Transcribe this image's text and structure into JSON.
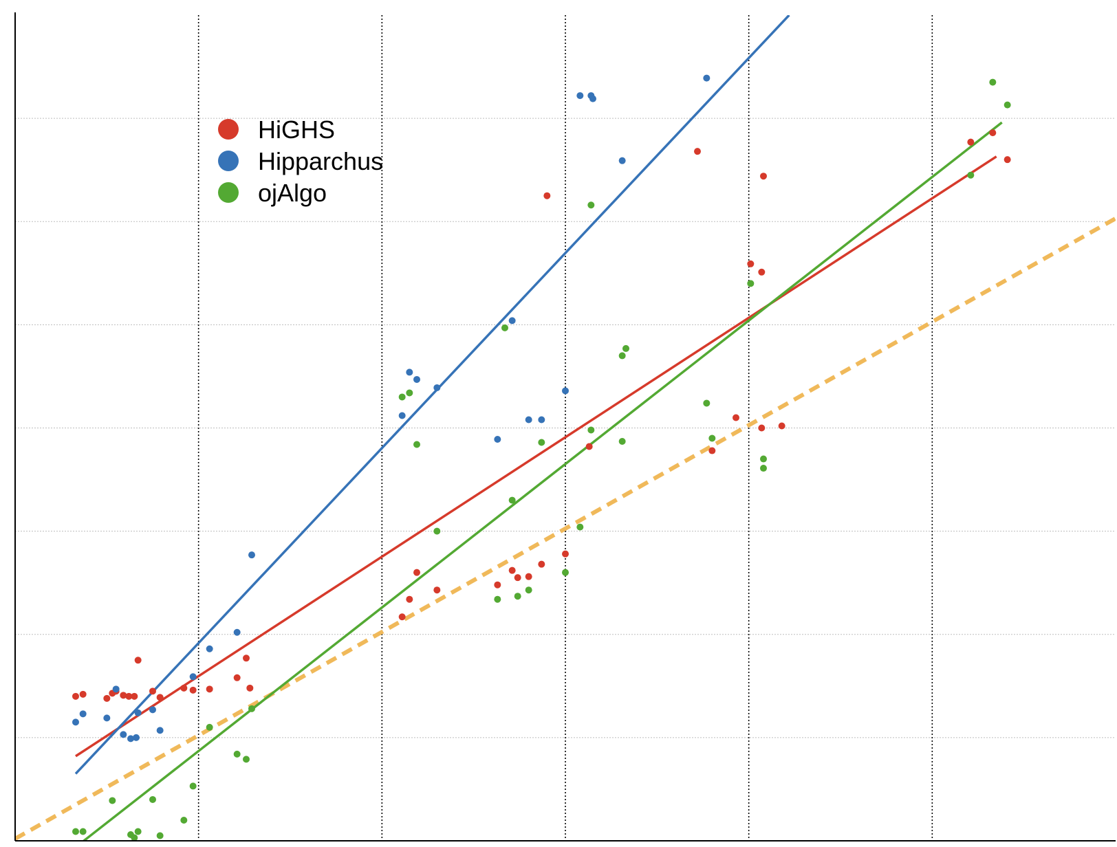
{
  "chart_data": {
    "type": "scatter",
    "title": "",
    "xlabel": "",
    "ylabel": "",
    "xlim": [
      0,
      6
    ],
    "ylim": [
      0,
      8
    ],
    "x_gridlines": [
      1,
      2,
      3,
      4,
      5
    ],
    "y_gridlines": [
      1,
      2,
      3,
      4,
      5,
      6,
      7
    ],
    "grid": true,
    "legend": {
      "placement": "top-left"
    },
    "reference_line": {
      "name": "",
      "color": "#f0b95a",
      "style": "dashed",
      "points": [
        [
          0,
          0.02
        ],
        [
          6,
          6.03
        ]
      ]
    },
    "series": [
      {
        "name": "HiGHS",
        "color": "#d63a2b",
        "trend": [
          [
            0.33,
            0.82
          ],
          [
            5.35,
            6.63
          ]
        ],
        "points": [
          [
            0.33,
            1.4
          ],
          [
            0.37,
            1.42
          ],
          [
            0.5,
            1.38
          ],
          [
            0.53,
            1.43
          ],
          [
            0.55,
            1.45
          ],
          [
            0.59,
            1.41
          ],
          [
            0.62,
            1.4
          ],
          [
            0.65,
            1.4
          ],
          [
            0.67,
            1.75
          ],
          [
            0.75,
            1.45
          ],
          [
            0.79,
            1.39
          ],
          [
            0.92,
            1.48
          ],
          [
            0.97,
            1.46
          ],
          [
            1.06,
            1.47
          ],
          [
            1.21,
            1.58
          ],
          [
            1.26,
            1.77
          ],
          [
            1.28,
            1.48
          ],
          [
            2.11,
            2.17
          ],
          [
            2.15,
            2.34
          ],
          [
            2.19,
            2.6
          ],
          [
            2.3,
            2.43
          ],
          [
            2.63,
            2.48
          ],
          [
            2.71,
            2.62
          ],
          [
            2.74,
            2.55
          ],
          [
            2.8,
            2.56
          ],
          [
            2.87,
            2.68
          ],
          [
            2.9,
            6.25
          ],
          [
            3.0,
            2.78
          ],
          [
            3.13,
            3.82
          ],
          [
            3.72,
            6.68
          ],
          [
            3.8,
            3.78
          ],
          [
            3.93,
            4.1
          ],
          [
            4.01,
            5.59
          ],
          [
            4.07,
            4.0
          ],
          [
            4.07,
            5.51
          ],
          [
            4.08,
            6.44
          ],
          [
            4.18,
            4.02
          ],
          [
            5.21,
            6.77
          ],
          [
            5.33,
            6.86
          ],
          [
            5.41,
            6.6
          ]
        ]
      },
      {
        "name": "Hipparchus",
        "color": "#3673b7",
        "trend": [
          [
            0.33,
            0.65
          ],
          [
            4.22,
            8.0
          ]
        ],
        "points": [
          [
            0.33,
            1.15
          ],
          [
            0.37,
            1.23
          ],
          [
            0.5,
            1.19
          ],
          [
            0.55,
            1.47
          ],
          [
            0.59,
            1.03
          ],
          [
            0.63,
            0.99
          ],
          [
            0.66,
            1.0
          ],
          [
            0.67,
            1.24
          ],
          [
            0.75,
            1.27
          ],
          [
            0.79,
            1.07
          ],
          [
            0.97,
            1.59
          ],
          [
            1.06,
            1.86
          ],
          [
            1.21,
            2.02
          ],
          [
            1.29,
            2.77
          ],
          [
            2.11,
            4.12
          ],
          [
            2.15,
            4.54
          ],
          [
            2.19,
            4.47
          ],
          [
            2.3,
            4.39
          ],
          [
            2.63,
            3.89
          ],
          [
            2.71,
            5.04
          ],
          [
            2.8,
            4.08
          ],
          [
            2.87,
            4.08
          ],
          [
            3.0,
            4.36
          ],
          [
            3.08,
            7.22
          ],
          [
            3.14,
            7.22
          ],
          [
            3.15,
            7.19
          ],
          [
            3.31,
            6.59
          ],
          [
            3.77,
            7.39
          ]
        ]
      },
      {
        "name": "ojAlgo",
        "color": "#53a933",
        "trend": [
          [
            0.36,
            -0.02
          ],
          [
            5.38,
            6.96
          ]
        ],
        "points": [
          [
            0.33,
            0.09
          ],
          [
            0.37,
            0.09
          ],
          [
            0.53,
            0.39
          ],
          [
            0.63,
            0.06
          ],
          [
            0.65,
            0.03
          ],
          [
            0.67,
            0.09
          ],
          [
            0.75,
            0.4
          ],
          [
            0.79,
            0.05
          ],
          [
            0.92,
            0.2
          ],
          [
            0.97,
            0.53
          ],
          [
            1.06,
            1.1
          ],
          [
            1.21,
            0.84
          ],
          [
            1.26,
            0.79
          ],
          [
            1.29,
            1.28
          ],
          [
            2.11,
            4.3
          ],
          [
            2.15,
            4.34
          ],
          [
            2.19,
            3.84
          ],
          [
            2.3,
            3.0
          ],
          [
            2.63,
            2.34
          ],
          [
            2.67,
            4.97
          ],
          [
            2.71,
            3.3
          ],
          [
            2.74,
            2.37
          ],
          [
            2.8,
            2.43
          ],
          [
            2.87,
            3.86
          ],
          [
            3.0,
            2.6
          ],
          [
            3.08,
            3.04
          ],
          [
            3.14,
            3.98
          ],
          [
            3.14,
            6.16
          ],
          [
            3.31,
            4.7
          ],
          [
            3.31,
            3.87
          ],
          [
            3.33,
            4.77
          ],
          [
            3.77,
            4.24
          ],
          [
            3.8,
            3.9
          ],
          [
            4.01,
            5.4
          ],
          [
            4.08,
            3.7
          ],
          [
            4.08,
            3.61
          ],
          [
            5.21,
            6.45
          ],
          [
            5.33,
            7.35
          ],
          [
            5.41,
            7.13
          ]
        ]
      }
    ]
  }
}
